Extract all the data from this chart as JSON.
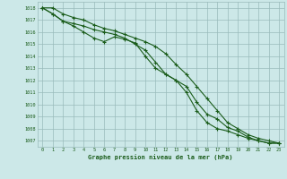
{
  "x": [
    0,
    1,
    2,
    3,
    4,
    5,
    6,
    7,
    8,
    9,
    10,
    11,
    12,
    13,
    14,
    15,
    16,
    17,
    18,
    19,
    20,
    21,
    22,
    23
  ],
  "line1": [
    1018,
    1018,
    1017.5,
    1017.2,
    1017,
    1016.6,
    1016.3,
    1016.1,
    1015.8,
    1015.5,
    1015.2,
    1014.8,
    1014.2,
    1013.3,
    1012.5,
    1011.5,
    1010.5,
    1009.5,
    1008.5,
    1008.0,
    1007.5,
    1007.2,
    1007.0,
    1006.8
  ],
  "line2": [
    1018,
    1017.5,
    1016.9,
    1016.7,
    1016.5,
    1016.2,
    1016.0,
    1015.8,
    1015.5,
    1015.0,
    1014.5,
    1013.5,
    1012.5,
    1012.0,
    1011.5,
    1010.2,
    1009.2,
    1008.8,
    1008.1,
    1007.8,
    1007.3,
    1007.0,
    1006.8,
    1006.8
  ],
  "line3": [
    1018,
    1017.5,
    1016.9,
    1016.5,
    1016.0,
    1015.5,
    1015.2,
    1015.6,
    1015.4,
    1015.1,
    1014.0,
    1013.0,
    1012.5,
    1012.0,
    1011.0,
    1009.5,
    1008.5,
    1008.0,
    1007.8,
    1007.5,
    1007.2,
    1007.0,
    1006.8,
    1006.8
  ],
  "line_color": "#1a5c1a",
  "bg_color": "#cce8e8",
  "grid_color": "#99bbbb",
  "xlabel": "Graphe pression niveau de la mer (hPa)",
  "ylim": [
    1006.5,
    1018.5
  ],
  "xlim": [
    -0.5,
    23.5
  ],
  "yticks": [
    1007,
    1008,
    1009,
    1010,
    1011,
    1012,
    1013,
    1014,
    1015,
    1016,
    1017,
    1018
  ],
  "xticks": [
    0,
    1,
    2,
    3,
    4,
    5,
    6,
    7,
    8,
    9,
    10,
    11,
    12,
    13,
    14,
    15,
    16,
    17,
    18,
    19,
    20,
    21,
    22,
    23
  ]
}
